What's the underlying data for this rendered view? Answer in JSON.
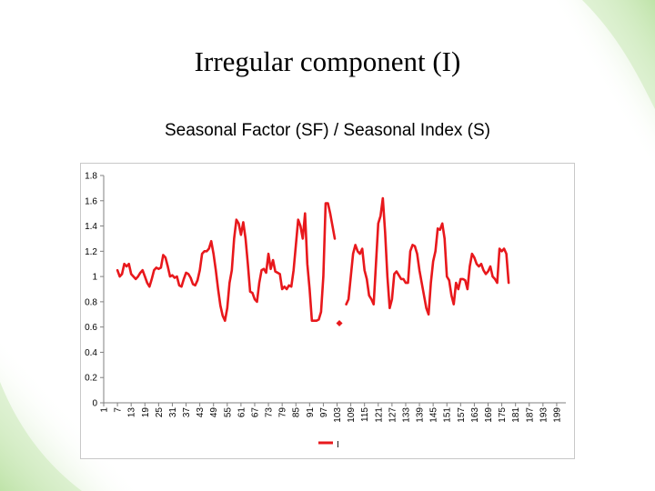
{
  "slide": {
    "title": "Irregular component (I)"
  },
  "chart_data": {
    "type": "line",
    "title": "Seasonal Factor (SF) / Seasonal Index (S)",
    "xlabel": "",
    "ylabel": "",
    "ylim": [
      0,
      1.8
    ],
    "y_ticks": [
      "0",
      "0.2",
      "0.4",
      "0.6",
      "0.8",
      "1",
      "1.2",
      "1.4",
      "1.6",
      "1.8"
    ],
    "x_range": [
      1,
      203
    ],
    "x_ticks": [
      1,
      7,
      13,
      19,
      25,
      31,
      37,
      43,
      49,
      55,
      61,
      67,
      73,
      79,
      85,
      91,
      97,
      103,
      109,
      115,
      121,
      127,
      133,
      139,
      145,
      151,
      157,
      163,
      169,
      175,
      181,
      187,
      193,
      199
    ],
    "grid": false,
    "legend_position": "bottom",
    "series": [
      {
        "name": "I",
        "color": "#e8181c",
        "segments": [
          [
            [
              7,
              1.05
            ],
            [
              8,
              1.0
            ],
            [
              9,
              1.02
            ],
            [
              10,
              1.1
            ],
            [
              11,
              1.08
            ],
            [
              12,
              1.1
            ],
            [
              13,
              1.02
            ],
            [
              14,
              1.0
            ],
            [
              15,
              0.98
            ],
            [
              16,
              1.0
            ],
            [
              17,
              1.03
            ],
            [
              18,
              1.05
            ],
            [
              19,
              1.0
            ],
            [
              20,
              0.95
            ],
            [
              21,
              0.92
            ],
            [
              22,
              0.98
            ],
            [
              23,
              1.05
            ],
            [
              24,
              1.07
            ],
            [
              25,
              1.06
            ],
            [
              26,
              1.07
            ],
            [
              27,
              1.17
            ],
            [
              28,
              1.15
            ],
            [
              29,
              1.08
            ],
            [
              30,
              1.0
            ],
            [
              31,
              1.01
            ],
            [
              32,
              0.99
            ],
            [
              33,
              1.0
            ],
            [
              34,
              0.93
            ],
            [
              35,
              0.92
            ],
            [
              36,
              0.98
            ],
            [
              37,
              1.03
            ],
            [
              38,
              1.02
            ],
            [
              39,
              0.99
            ],
            [
              40,
              0.94
            ],
            [
              41,
              0.93
            ],
            [
              42,
              0.97
            ],
            [
              43,
              1.05
            ],
            [
              44,
              1.18
            ],
            [
              45,
              1.2
            ],
            [
              46,
              1.2
            ],
            [
              47,
              1.22
            ],
            [
              48,
              1.28
            ],
            [
              49,
              1.18
            ],
            [
              50,
              1.05
            ],
            [
              51,
              0.9
            ],
            [
              52,
              0.77
            ],
            [
              53,
              0.69
            ],
            [
              54,
              0.65
            ],
            [
              55,
              0.75
            ],
            [
              56,
              0.95
            ],
            [
              57,
              1.05
            ],
            [
              58,
              1.3
            ],
            [
              59,
              1.45
            ],
            [
              60,
              1.42
            ],
            [
              61,
              1.33
            ],
            [
              62,
              1.43
            ],
            [
              63,
              1.3
            ],
            [
              64,
              1.1
            ],
            [
              65,
              0.88
            ],
            [
              66,
              0.87
            ],
            [
              67,
              0.82
            ],
            [
              68,
              0.8
            ],
            [
              69,
              0.95
            ],
            [
              70,
              1.05
            ],
            [
              71,
              1.06
            ],
            [
              72,
              1.03
            ],
            [
              73,
              1.18
            ],
            [
              74,
              1.06
            ],
            [
              75,
              1.13
            ],
            [
              76,
              1.04
            ],
            [
              77,
              1.03
            ],
            [
              78,
              1.02
            ],
            [
              79,
              0.9
            ],
            [
              80,
              0.92
            ],
            [
              81,
              0.9
            ],
            [
              82,
              0.93
            ],
            [
              83,
              0.92
            ],
            [
              84,
              1.05
            ],
            [
              85,
              1.25
            ],
            [
              86,
              1.45
            ],
            [
              87,
              1.4
            ],
            [
              88,
              1.3
            ],
            [
              89,
              1.5
            ],
            [
              90,
              1.1
            ],
            [
              91,
              0.9
            ],
            [
              92,
              0.65
            ],
            [
              93,
              0.65
            ],
            [
              94,
              0.65
            ],
            [
              95,
              0.66
            ],
            [
              96,
              0.72
            ],
            [
              97,
              1.0
            ],
            [
              98,
              1.58
            ],
            [
              99,
              1.58
            ],
            [
              100,
              1.5
            ],
            [
              101,
              1.4
            ],
            [
              102,
              1.3
            ]
          ],
          [
            [
              107,
              0.78
            ],
            [
              108,
              0.82
            ],
            [
              109,
              1.0
            ],
            [
              110,
              1.18
            ],
            [
              111,
              1.25
            ],
            [
              112,
              1.2
            ],
            [
              113,
              1.18
            ],
            [
              114,
              1.22
            ],
            [
              115,
              1.05
            ],
            [
              116,
              0.98
            ],
            [
              117,
              0.85
            ],
            [
              118,
              0.82
            ],
            [
              119,
              0.78
            ],
            [
              120,
              1.1
            ],
            [
              121,
              1.42
            ],
            [
              122,
              1.48
            ],
            [
              123,
              1.62
            ],
            [
              124,
              1.35
            ],
            [
              125,
              1.0
            ],
            [
              126,
              0.75
            ],
            [
              127,
              0.82
            ],
            [
              128,
              1.02
            ],
            [
              129,
              1.04
            ],
            [
              130,
              1.01
            ],
            [
              131,
              0.98
            ],
            [
              132,
              0.98
            ],
            [
              133,
              0.95
            ],
            [
              134,
              0.95
            ],
            [
              135,
              1.2
            ],
            [
              136,
              1.25
            ],
            [
              137,
              1.24
            ],
            [
              138,
              1.18
            ],
            [
              139,
              1.05
            ],
            [
              140,
              0.95
            ],
            [
              141,
              0.85
            ],
            [
              142,
              0.75
            ],
            [
              143,
              0.7
            ],
            [
              144,
              0.95
            ],
            [
              145,
              1.12
            ],
            [
              146,
              1.2
            ],
            [
              147,
              1.38
            ],
            [
              148,
              1.37
            ],
            [
              149,
              1.42
            ],
            [
              150,
              1.3
            ],
            [
              151,
              1.0
            ],
            [
              152,
              0.97
            ],
            [
              153,
              0.85
            ],
            [
              154,
              0.78
            ],
            [
              155,
              0.95
            ],
            [
              156,
              0.9
            ],
            [
              157,
              0.98
            ],
            [
              158,
              0.98
            ],
            [
              159,
              0.97
            ],
            [
              160,
              0.9
            ],
            [
              161,
              1.08
            ],
            [
              162,
              1.18
            ],
            [
              163,
              1.15
            ],
            [
              164,
              1.1
            ],
            [
              165,
              1.08
            ],
            [
              166,
              1.1
            ],
            [
              167,
              1.05
            ],
            [
              168,
              1.02
            ],
            [
              169,
              1.04
            ],
            [
              170,
              1.08
            ],
            [
              171,
              1.0
            ],
            [
              172,
              0.98
            ],
            [
              173,
              0.95
            ],
            [
              174,
              1.22
            ],
            [
              175,
              1.2
            ],
            [
              176,
              1.22
            ],
            [
              177,
              1.18
            ],
            [
              178,
              0.95
            ]
          ]
        ],
        "isolated_points": [
          [
            104,
            0.63
          ]
        ]
      }
    ]
  }
}
